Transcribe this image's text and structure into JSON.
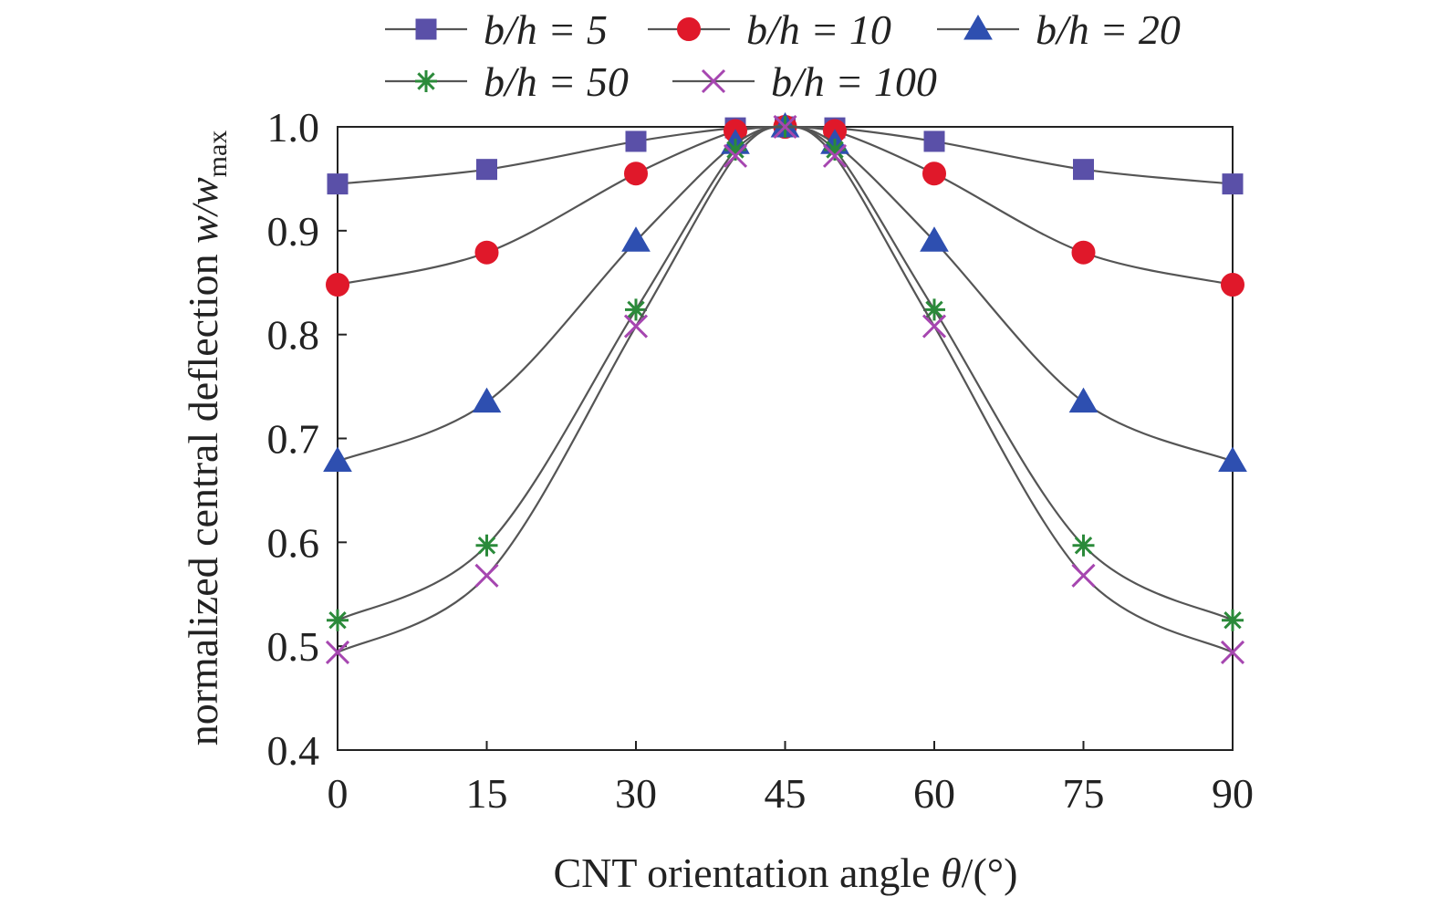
{
  "chart_data": {
    "type": "line",
    "xlabel_prefix": "CNT orientation angle ",
    "xlabel_symbol": "θ",
    "xlabel_suffix": "/(°)",
    "ylabel_prefix": "normalized central deflection ",
    "ylabel_symbol": "w",
    "ylabel_sub": "max",
    "xlim": [
      0,
      90
    ],
    "ylim": [
      0.4,
      1.0
    ],
    "xticks": [
      "0",
      "15",
      "30",
      "45",
      "60",
      "75",
      "90"
    ],
    "yticks": [
      "0.4",
      "0.5",
      "0.6",
      "0.7",
      "0.8",
      "0.9",
      "1.0"
    ],
    "grid": false,
    "legend_position": "top",
    "x": [
      0,
      15,
      30,
      40,
      45,
      50,
      60,
      75,
      90
    ],
    "series": [
      {
        "name": "b/h = 5",
        "key": "bh5",
        "color": "#5a50a8",
        "marker": "square",
        "values": [
          0.945,
          0.959,
          0.986,
          0.999,
          1.0,
          0.999,
          0.986,
          0.959,
          0.945
        ]
      },
      {
        "name": "b/h = 10",
        "key": "bh10",
        "color": "#e0182a",
        "marker": "circle",
        "values": [
          0.848,
          0.879,
          0.955,
          0.996,
          1.0,
          0.996,
          0.955,
          0.879,
          0.848
        ]
      },
      {
        "name": "b/h = 20",
        "key": "bh20",
        "color": "#2e4fb0",
        "marker": "triangle",
        "values": [
          0.678,
          0.735,
          0.89,
          0.984,
          1.0,
          0.984,
          0.89,
          0.735,
          0.678
        ]
      },
      {
        "name": "b/h = 50",
        "key": "bh50",
        "color": "#2b8a3a",
        "marker": "star",
        "values": [
          0.525,
          0.597,
          0.824,
          0.978,
          1.0,
          0.978,
          0.824,
          0.597,
          0.525
        ]
      },
      {
        "name": "b/h = 100",
        "key": "bh100",
        "color": "#a646b0",
        "marker": "x",
        "values": [
          0.494,
          0.568,
          0.808,
          0.972,
          1.0,
          0.972,
          0.808,
          0.568,
          0.494
        ]
      }
    ],
    "line_color": "#555555"
  }
}
